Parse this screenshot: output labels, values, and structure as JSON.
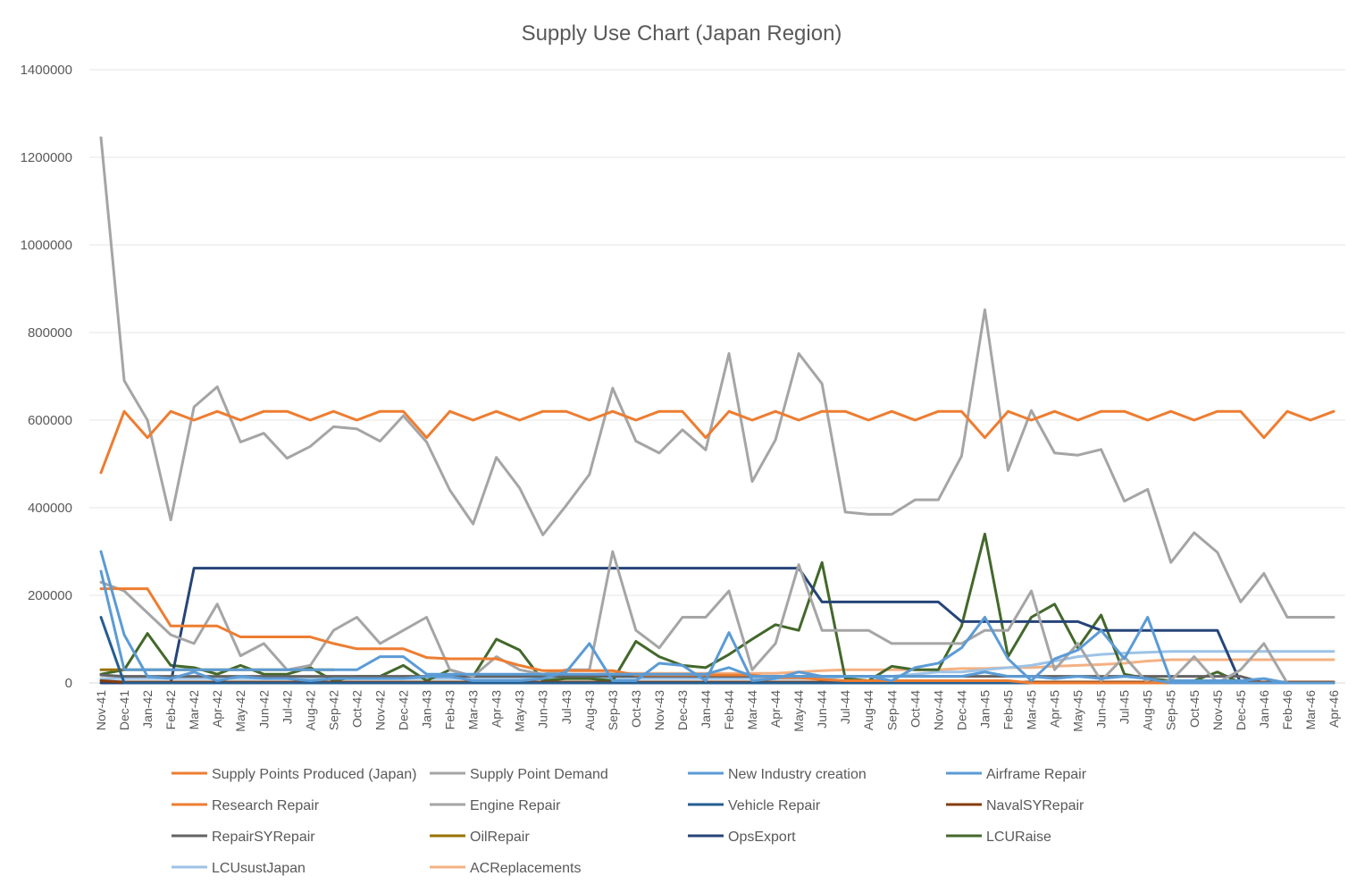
{
  "chart_data": {
    "type": "line",
    "title": "Supply Use Chart (Japan Region)",
    "xlabel": "",
    "ylabel": "",
    "ylim": [
      0,
      1400000
    ],
    "yticks": [
      0,
      200000,
      400000,
      600000,
      800000,
      1000000,
      1200000,
      1400000
    ],
    "grid": true,
    "legend_position": "bottom",
    "categories": [
      "Nov-41",
      "Dec-41",
      "Jan-42",
      "Feb-42",
      "Mar-42",
      "Apr-42",
      "May-42",
      "Jun-42",
      "Jul-42",
      "Aug-42",
      "Sep-42",
      "Oct-42",
      "Nov-42",
      "Dec-42",
      "Jan-43",
      "Feb-43",
      "Mar-43",
      "Apr-43",
      "May-43",
      "Jun-43",
      "Jul-43",
      "Aug-43",
      "Sep-43",
      "Oct-43",
      "Nov-43",
      "Dec-43",
      "Jan-44",
      "Feb-44",
      "Mar-44",
      "Apr-44",
      "May-44",
      "Jun-44",
      "Jul-44",
      "Aug-44",
      "Sep-44",
      "Oct-44",
      "Nov-44",
      "Dec-44",
      "Jan-45",
      "Feb-45",
      "Mar-45",
      "Apr-45",
      "May-45",
      "Jun-45",
      "Jul-45",
      "Aug-45",
      "Sep-45",
      "Oct-45",
      "Nov-45",
      "Dec-45",
      "Jan-46",
      "Feb-46",
      "Mar-46",
      "Apr-46"
    ],
    "series": [
      {
        "name": "Supply Points Produced (Japan)",
        "color": "#ED7D31",
        "values": [
          480000,
          620000,
          560000,
          620000,
          600000,
          620000,
          600000,
          620000,
          620000,
          600000,
          620000,
          600000,
          620000,
          620000,
          560000,
          620000,
          600000,
          620000,
          600000,
          620000,
          620000,
          600000,
          620000,
          600000,
          620000,
          620000,
          560000,
          620000,
          600000,
          620000,
          600000,
          620000,
          620000,
          600000,
          620000,
          600000,
          620000,
          620000,
          560000,
          620000,
          600000,
          620000,
          600000,
          620000,
          620000,
          600000,
          620000,
          600000,
          620000,
          620000,
          560000,
          620000,
          600000,
          620000
        ]
      },
      {
        "name": "Supply Point Demand",
        "color": "#A5A5A5",
        "values": [
          1245000,
          690000,
          600000,
          372000,
          630000,
          676000,
          550000,
          570000,
          513000,
          540000,
          585000,
          580000,
          552000,
          610000,
          550000,
          440000,
          363000,
          515000,
          445000,
          338000,
          405000,
          476000,
          673000,
          552000,
          525000,
          578000,
          532000,
          752000,
          460000,
          555000,
          752000,
          683000,
          390000,
          385000,
          385000,
          418000,
          418000,
          518000,
          852000,
          485000,
          622000,
          525000,
          520000,
          533000,
          415000,
          442000,
          275000,
          343000,
          298000,
          185000,
          250000,
          150000,
          150000,
          150000
        ]
      },
      {
        "name": "New Industry creation",
        "color": "#5B9BD5",
        "values": [
          300000,
          110000,
          15000,
          10000,
          25000,
          5000,
          15000,
          10000,
          10000,
          5000,
          10000,
          10000,
          10000,
          10000,
          15000,
          15000,
          5000,
          5000,
          5000,
          10000,
          25000,
          90000,
          5000,
          5000,
          45000,
          40000,
          5000,
          115000,
          5000,
          10000,
          25000,
          15000,
          15000,
          15000,
          5000,
          35000,
          45000,
          80000,
          150000,
          55000,
          5000,
          55000,
          75000,
          120000,
          55000,
          150000,
          5000,
          5000,
          5000,
          5000,
          10000,
          0,
          0,
          0
        ]
      },
      {
        "name": "Airframe Repair",
        "color": "#5B9BD5",
        "values": [
          255000,
          30000,
          30000,
          30000,
          30000,
          30000,
          30000,
          30000,
          30000,
          30000,
          30000,
          30000,
          60000,
          60000,
          20000,
          20000,
          20000,
          20000,
          20000,
          20000,
          20000,
          20000,
          20000,
          20000,
          20000,
          20000,
          20000,
          35000,
          15000,
          15000,
          15000,
          15000,
          15000,
          15000,
          15000,
          15000,
          15000,
          15000,
          25000,
          15000,
          15000,
          10000,
          15000,
          10000,
          15000,
          10000,
          0,
          0,
          0,
          0,
          0,
          0,
          0,
          0
        ]
      },
      {
        "name": "Research Repair",
        "color": "#ED7D31",
        "values": [
          215000,
          215000,
          215000,
          130000,
          130000,
          130000,
          105000,
          105000,
          105000,
          105000,
          90000,
          78000,
          78000,
          78000,
          58000,
          55000,
          55000,
          55000,
          40000,
          28000,
          28000,
          28000,
          28000,
          18000,
          18000,
          18000,
          18000,
          18000,
          18000,
          12000,
          12000,
          8000,
          5000,
          5000,
          5000,
          5000,
          5000,
          5000,
          5000,
          5000,
          0,
          0,
          0,
          0,
          0,
          0,
          0,
          0,
          0,
          0,
          0,
          0,
          0,
          0
        ]
      },
      {
        "name": "Engine Repair",
        "color": "#A5A5A5",
        "values": [
          230000,
          210000,
          160000,
          110000,
          90000,
          180000,
          62000,
          90000,
          30000,
          40000,
          120000,
          150000,
          90000,
          120000,
          150000,
          30000,
          15000,
          60000,
          30000,
          20000,
          30000,
          30000,
          300000,
          120000,
          80000,
          150000,
          150000,
          210000,
          30000,
          90000,
          270000,
          120000,
          120000,
          120000,
          90000,
          90000,
          90000,
          90000,
          120000,
          120000,
          210000,
          30000,
          90000,
          5000,
          60000,
          0,
          5000,
          60000,
          0,
          30000,
          90000,
          0,
          0,
          0
        ]
      },
      {
        "name": "Vehicle Repair",
        "color": "#255E91",
        "values": [
          150000,
          0,
          0,
          0,
          0,
          0,
          0,
          0,
          0,
          0,
          0,
          0,
          0,
          0,
          0,
          0,
          0,
          0,
          0,
          0,
          0,
          0,
          0,
          0,
          0,
          0,
          0,
          0,
          0,
          0,
          0,
          0,
          0,
          0,
          0,
          0,
          0,
          0,
          0,
          0,
          0,
          0,
          0,
          0,
          0,
          0,
          0,
          0,
          0,
          0,
          0,
          0,
          0,
          0
        ]
      },
      {
        "name": "NavalSYRepair",
        "color": "#843C0C",
        "values": [
          5000,
          2000,
          2000,
          2000,
          2000,
          2000,
          2000,
          2000,
          2000,
          2000,
          2000,
          2000,
          2000,
          2000,
          2000,
          2000,
          2000,
          2000,
          2000,
          2000,
          2000,
          2000,
          2000,
          2000,
          2000,
          2000,
          2000,
          2000,
          2000,
          2000,
          2000,
          2000,
          2000,
          2000,
          2000,
          2000,
          2000,
          2000,
          2000,
          2000,
          2000,
          2000,
          2000,
          2000,
          2000,
          2000,
          2000,
          2000,
          2000,
          2000,
          2000,
          2000,
          2000,
          2000
        ]
      },
      {
        "name": "RepairSYRepair",
        "color": "#636363",
        "values": [
          18000,
          15000,
          15000,
          15000,
          15000,
          15000,
          15000,
          15000,
          15000,
          15000,
          15000,
          15000,
          15000,
          15000,
          15000,
          15000,
          15000,
          15000,
          15000,
          15000,
          15000,
          15000,
          15000,
          15000,
          15000,
          15000,
          15000,
          15000,
          15000,
          15000,
          15000,
          15000,
          15000,
          15000,
          15000,
          15000,
          15000,
          15000,
          15000,
          15000,
          15000,
          15000,
          15000,
          15000,
          15000,
          15000,
          15000,
          15000,
          15000,
          15000,
          0,
          0,
          0,
          0
        ]
      },
      {
        "name": "OilRepair",
        "color": "#997300",
        "values": [
          30000,
          30000,
          30000,
          30000,
          30000,
          30000,
          30000,
          30000,
          30000,
          30000,
          30000,
          null,
          null,
          null,
          null,
          null,
          null,
          null,
          null,
          null,
          null,
          null,
          null,
          null,
          null,
          null,
          null,
          null,
          null,
          null,
          null,
          null,
          null,
          null,
          null,
          null,
          null,
          null,
          null,
          null,
          null,
          null,
          null,
          null,
          null,
          null,
          null,
          null,
          null,
          null,
          null,
          null,
          null,
          null
        ]
      },
      {
        "name": "OpsExport",
        "color": "#264478",
        "values": [
          0,
          0,
          0,
          0,
          262000,
          262000,
          262000,
          262000,
          262000,
          262000,
          262000,
          262000,
          262000,
          262000,
          262000,
          262000,
          262000,
          262000,
          262000,
          262000,
          262000,
          262000,
          262000,
          262000,
          262000,
          262000,
          262000,
          262000,
          262000,
          262000,
          262000,
          185000,
          185000,
          185000,
          185000,
          185000,
          185000,
          140000,
          140000,
          140000,
          140000,
          140000,
          140000,
          120000,
          120000,
          120000,
          120000,
          120000,
          120000,
          0,
          0,
          0,
          0,
          0
        ]
      },
      {
        "name": "LCURaise",
        "color": "#43682B",
        "values": [
          20000,
          30000,
          113000,
          40000,
          35000,
          20000,
          40000,
          20000,
          20000,
          35000,
          5000,
          15000,
          15000,
          40000,
          5000,
          30000,
          15000,
          100000,
          75000,
          5000,
          10000,
          10000,
          5000,
          95000,
          60000,
          40000,
          35000,
          65000,
          100000,
          133000,
          120000,
          275000,
          10000,
          5000,
          38000,
          30000,
          30000,
          130000,
          340000,
          60000,
          150000,
          180000,
          80000,
          155000,
          20000,
          10000,
          5000,
          5000,
          25000,
          0,
          0,
          0,
          0,
          0
        ]
      },
      {
        "name": "LCUsustJapan",
        "color": "#9DC3E6",
        "values": [
          10000,
          10000,
          10000,
          10000,
          10000,
          10000,
          10000,
          10000,
          10000,
          10000,
          10000,
          10000,
          10000,
          10000,
          10000,
          10000,
          10000,
          10000,
          10000,
          10000,
          10000,
          10000,
          10000,
          10000,
          10000,
          10000,
          10000,
          10000,
          10000,
          10000,
          10000,
          10000,
          15000,
          15000,
          15000,
          20000,
          25000,
          25000,
          30000,
          35000,
          40000,
          50000,
          60000,
          65000,
          68000,
          70000,
          72000,
          72000,
          72000,
          72000,
          72000,
          72000,
          72000,
          72000
        ]
      },
      {
        "name": "ACReplacements",
        "color": "#F4B183",
        "values": [
          10000,
          12000,
          12000,
          12000,
          12000,
          12000,
          12000,
          13000,
          13000,
          13000,
          15000,
          15000,
          15000,
          15000,
          15000,
          17000,
          17000,
          17000,
          17000,
          20000,
          20000,
          20000,
          22000,
          22000,
          22000,
          22000,
          22000,
          22000,
          22000,
          22000,
          25000,
          28000,
          30000,
          30000,
          30000,
          30000,
          30000,
          33000,
          33000,
          35000,
          35000,
          38000,
          40000,
          42000,
          45000,
          50000,
          53000,
          53000,
          53000,
          53000,
          53000,
          53000,
          53000,
          53000
        ]
      }
    ]
  }
}
